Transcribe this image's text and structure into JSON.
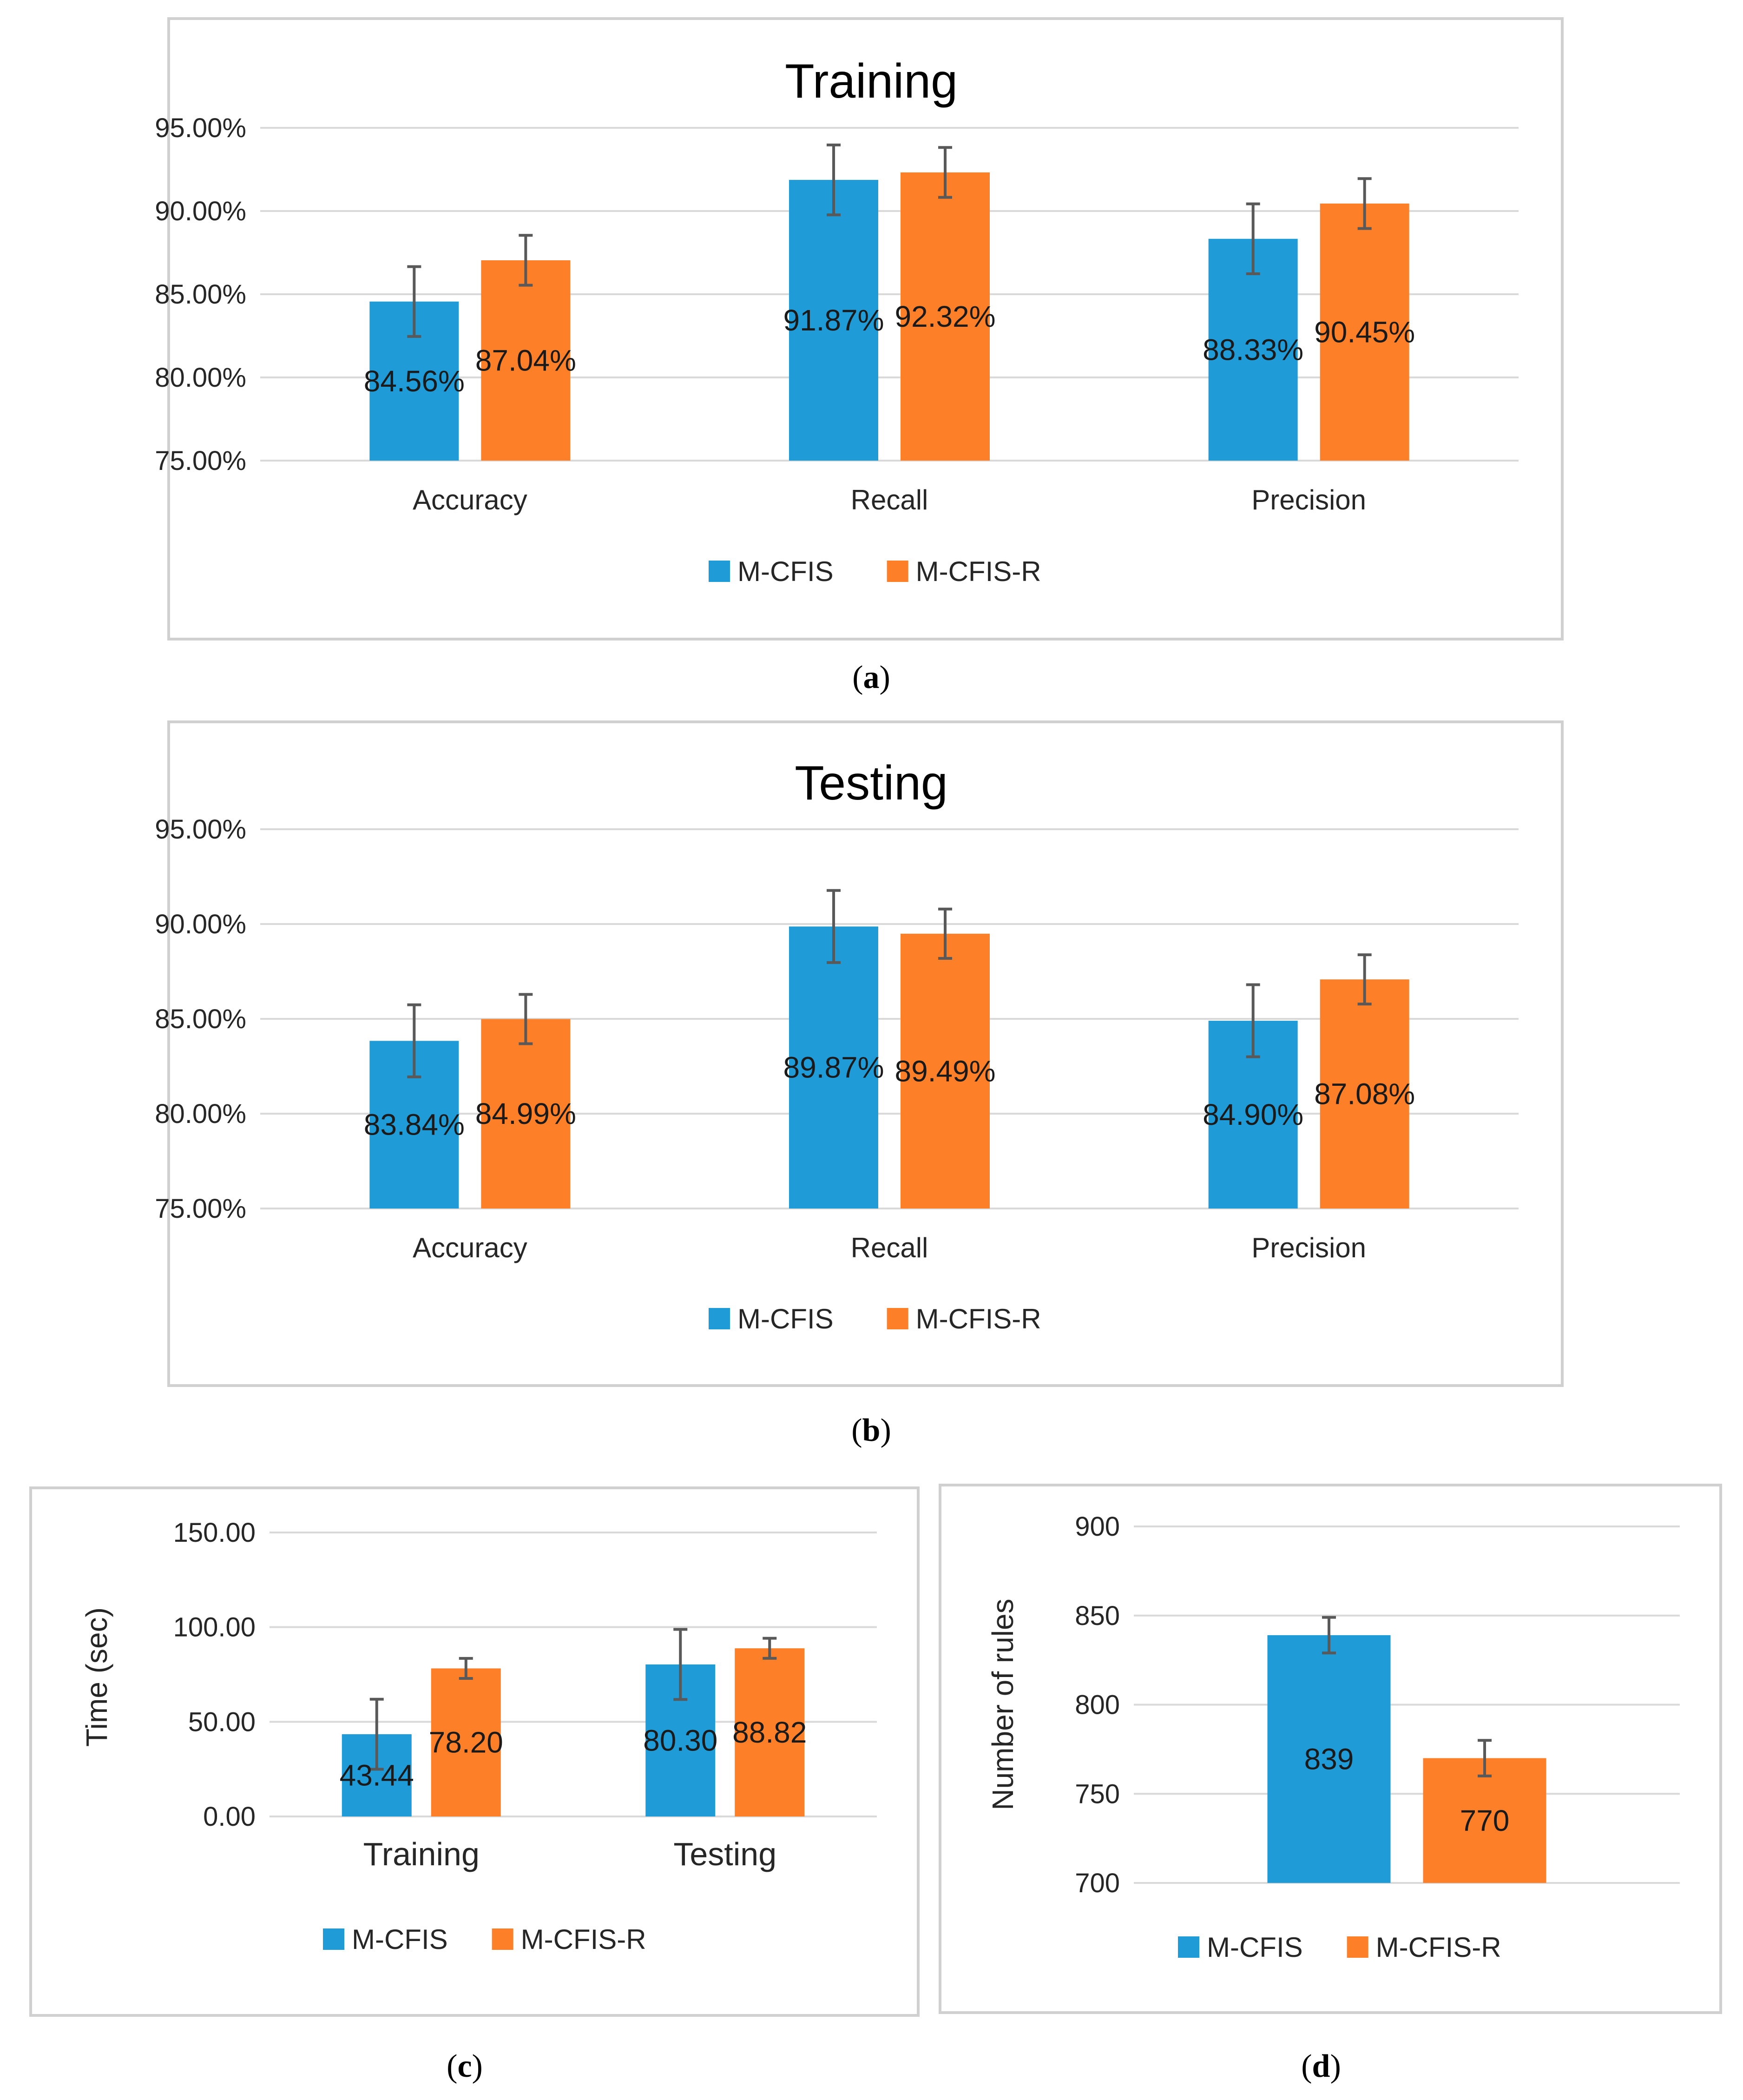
{
  "colors": {
    "m_cfis": "#1f9bd8",
    "m_cfis_r": "#fd7f28"
  },
  "chart_data": [
    {
      "id": "a",
      "type": "bar",
      "title": "Training",
      "caption_letter": "a",
      "ylabel": "",
      "categories": [
        "Accuracy",
        "Recall",
        "Precision"
      ],
      "ylim": [
        0.75,
        0.95
      ],
      "yticks": [
        0.75,
        0.8,
        0.85,
        0.9,
        0.95
      ],
      "ytick_labels": [
        "75.00%",
        "80.00%",
        "85.00%",
        "90.00%",
        "95.00%"
      ],
      "series": [
        {
          "name": "M-CFIS",
          "values": [
            0.8456,
            0.9187,
            0.8833
          ],
          "errors": [
            0.021,
            0.021,
            0.021
          ],
          "labels": [
            "84.56%",
            "91.87%",
            "88.33%"
          ]
        },
        {
          "name": "M-CFIS-R",
          "values": [
            0.8704,
            0.9232,
            0.9045
          ],
          "errors": [
            0.015,
            0.015,
            0.015
          ],
          "labels": [
            "87.04%",
            "92.32%",
            "90.45%"
          ]
        }
      ],
      "legend": [
        "M-CFIS",
        "M-CFIS-R"
      ],
      "legend_position": "bottom"
    },
    {
      "id": "b",
      "type": "bar",
      "title": "Testing",
      "caption_letter": "b",
      "ylabel": "",
      "categories": [
        "Accuracy",
        "Recall",
        "Precision"
      ],
      "ylim": [
        0.75,
        0.95
      ],
      "yticks": [
        0.75,
        0.8,
        0.85,
        0.9,
        0.95
      ],
      "ytick_labels": [
        "75.00%",
        "80.00%",
        "85.00%",
        "90.00%",
        "95.00%"
      ],
      "series": [
        {
          "name": "M-CFIS",
          "values": [
            0.8384,
            0.8987,
            0.849
          ],
          "errors": [
            0.019,
            0.019,
            0.019
          ],
          "labels": [
            "83.84%",
            "89.87%",
            "84.90%"
          ]
        },
        {
          "name": "M-CFIS-R",
          "values": [
            0.8499,
            0.8949,
            0.8708
          ],
          "errors": [
            0.013,
            0.013,
            0.013
          ],
          "labels": [
            "84.99%",
            "89.49%",
            "87.08%"
          ]
        }
      ],
      "legend": [
        "M-CFIS",
        "M-CFIS-R"
      ],
      "legend_position": "bottom"
    },
    {
      "id": "c",
      "type": "bar",
      "title": "",
      "caption_letter": "c",
      "ylabel": "Time (sec)",
      "categories": [
        "Training",
        "Testing"
      ],
      "ylim": [
        0,
        150
      ],
      "yticks": [
        0,
        50,
        100,
        150
      ],
      "ytick_labels": [
        "0.00",
        "50.00",
        "100.00",
        "150.00"
      ],
      "series": [
        {
          "name": "M-CFIS",
          "values": [
            43.44,
            80.3
          ],
          "errors": [
            18.5,
            18.5
          ],
          "labels": [
            "43.44",
            "80.30"
          ]
        },
        {
          "name": "M-CFIS-R",
          "values": [
            78.2,
            88.82
          ],
          "errors": [
            5.3,
            5.3
          ],
          "labels": [
            "78.20",
            "88.82"
          ]
        }
      ],
      "legend": [
        "M-CFIS",
        "M-CFIS-R"
      ],
      "legend_position": "bottom"
    },
    {
      "id": "d",
      "type": "bar",
      "title": "",
      "caption_letter": "d",
      "ylabel": "Number of rules",
      "categories": [
        ""
      ],
      "ylim": [
        700,
        900
      ],
      "yticks": [
        700,
        750,
        800,
        850,
        900
      ],
      "ytick_labels": [
        "700",
        "750",
        "800",
        "850",
        "900"
      ],
      "series": [
        {
          "name": "M-CFIS",
          "values": [
            839
          ],
          "errors": [
            10
          ],
          "labels": [
            "839"
          ]
        },
        {
          "name": "M-CFIS-R",
          "values": [
            770
          ],
          "errors": [
            10
          ],
          "labels": [
            "770"
          ]
        }
      ],
      "legend": [
        "M-CFIS",
        "M-CFIS-R"
      ],
      "legend_position": "bottom"
    }
  ]
}
